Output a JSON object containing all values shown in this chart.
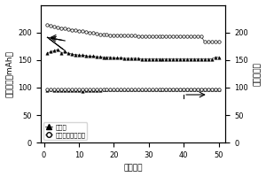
{
  "xlabel": "循环次数",
  "ylabel_left": "放电容量（mAh）",
  "ylabel_right": "效率（％）",
  "xlim": [
    -1,
    52
  ],
  "ylim_left": [
    0,
    250
  ],
  "ylim_right": [
    0,
    250
  ],
  "yticks_left": [
    0,
    50,
    100,
    150,
    200
  ],
  "yticks_right": [
    0,
    50,
    100,
    150,
    200
  ],
  "xticks": [
    0,
    10,
    20,
    30,
    40,
    50
  ],
  "legend1": "电解液",
  "legend2": "聚合物凝胶电解质",
  "elec_cap": [
    163,
    165,
    167,
    169,
    163,
    165,
    162,
    161,
    160,
    159,
    159,
    158,
    157,
    157,
    156,
    156,
    155,
    155,
    155,
    154,
    154,
    154,
    153,
    153,
    153,
    153,
    153,
    152,
    152,
    152,
    152,
    152,
    152,
    152,
    152,
    152,
    152,
    152,
    152,
    152,
    152,
    152,
    152,
    152,
    152,
    152,
    152,
    152,
    155,
    155
  ],
  "poly_cap": [
    214,
    212,
    210,
    209,
    208,
    207,
    206,
    205,
    204,
    203,
    202,
    201,
    200,
    199,
    198,
    197,
    196,
    196,
    195,
    195,
    195,
    195,
    195,
    194,
    194,
    194,
    193,
    193,
    193,
    193,
    193,
    193,
    193,
    193,
    193,
    193,
    193,
    193,
    193,
    193,
    193,
    193,
    193,
    193,
    193,
    183,
    183,
    183,
    183,
    183
  ],
  "elec_eff": [
    95,
    96,
    95,
    95,
    95,
    95,
    95,
    95,
    95,
    95,
    93,
    95,
    95,
    95,
    95,
    95,
    96,
    96,
    96,
    96,
    96,
    96,
    96,
    96,
    96,
    96,
    96,
    96,
    96,
    96,
    96,
    96,
    97,
    97,
    97,
    97,
    97,
    97,
    97,
    97,
    97,
    97,
    97,
    97,
    97,
    97,
    97,
    97,
    97,
    97
  ],
  "poly_eff": [
    96,
    96,
    96,
    96,
    96,
    96,
    96,
    96,
    96,
    96,
    96,
    96,
    96,
    96,
    96,
    96,
    96,
    96,
    96,
    96,
    96,
    96,
    96,
    96,
    96,
    96,
    96,
    96,
    96,
    96,
    96,
    96,
    96,
    97,
    97,
    97,
    97,
    97,
    97,
    97,
    97,
    97,
    97,
    97,
    97,
    97,
    97,
    97,
    97,
    97
  ]
}
